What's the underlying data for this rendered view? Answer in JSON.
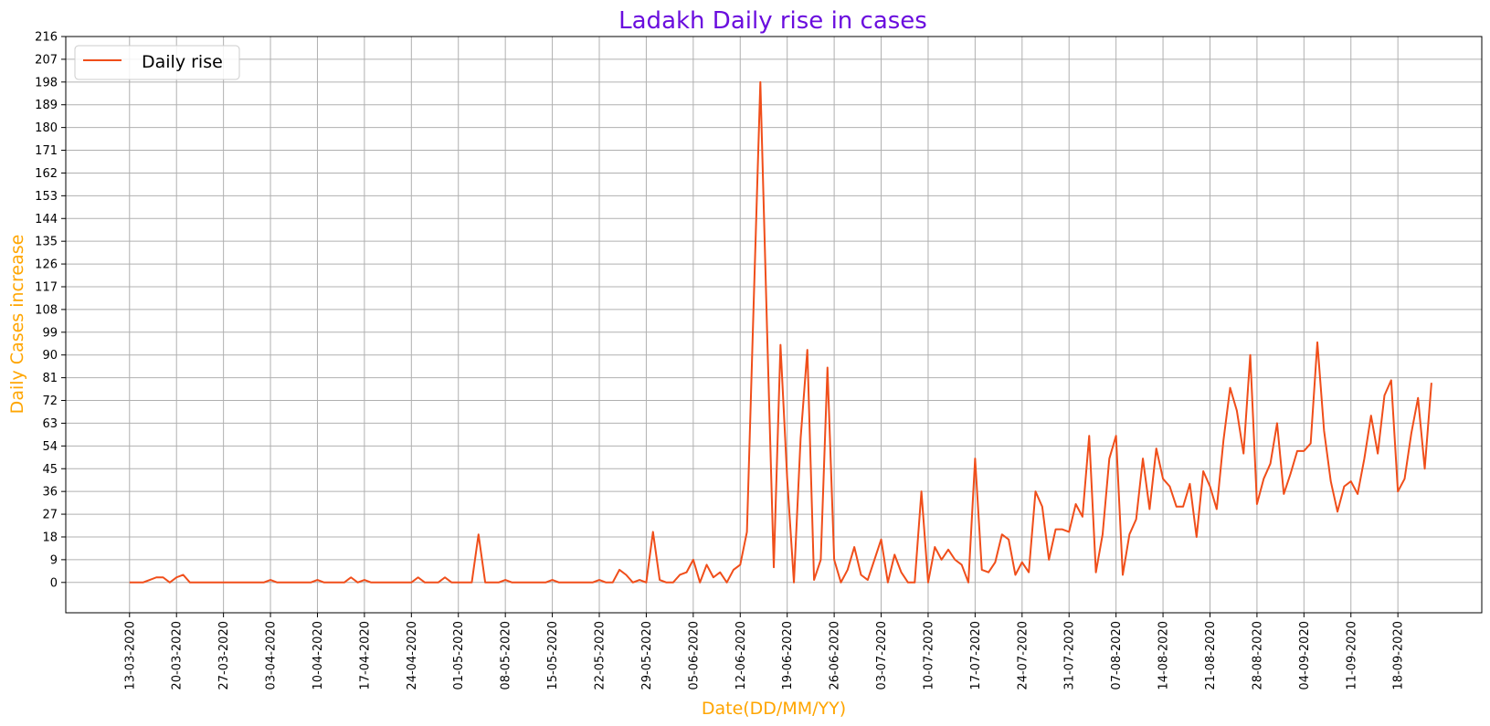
{
  "chart_data": {
    "type": "line",
    "title": "Ladakh Daily rise in cases",
    "xlabel": "Date(DD/MM/YY)",
    "ylabel": "Daily Cases increase",
    "legend": {
      "position": "top-left",
      "entries": [
        "Daily rise"
      ]
    },
    "grid": true,
    "colors": {
      "title": "#6a0dde",
      "axis_label": "#ffa500",
      "line": "#f04e1a",
      "grid": "#b0b0b0"
    },
    "ylim": [
      -12,
      216
    ],
    "yticks": [
      0,
      9,
      18,
      27,
      36,
      45,
      54,
      63,
      72,
      81,
      90,
      99,
      108,
      117,
      126,
      135,
      144,
      153,
      162,
      171,
      180,
      189,
      198,
      207,
      216
    ],
    "xtick_labels": [
      "13-03-2020",
      "20-03-2020",
      "27-03-2020",
      "03-04-2020",
      "10-04-2020",
      "17-04-2020",
      "24-04-2020",
      "01-05-2020",
      "08-05-2020",
      "15-05-2020",
      "22-05-2020",
      "29-05-2020",
      "05-06-2020",
      "12-06-2020",
      "19-06-2020",
      "26-06-2020",
      "03-07-2020",
      "10-07-2020",
      "17-07-2020",
      "24-07-2020",
      "31-07-2020",
      "07-08-2020",
      "14-08-2020",
      "21-08-2020",
      "28-08-2020",
      "04-09-2020",
      "11-09-2020",
      "18-09-2020"
    ],
    "x_start_date": "13-03-2020",
    "x_day_range": [
      -9.5,
      201.5
    ],
    "series": [
      {
        "name": "Daily rise",
        "values": [
          0,
          0,
          0,
          1,
          2,
          2,
          0,
          2,
          3,
          0,
          0,
          0,
          0,
          0,
          0,
          0,
          0,
          0,
          0,
          0,
          0,
          1,
          0,
          0,
          0,
          0,
          0,
          0,
          1,
          0,
          0,
          0,
          0,
          2,
          0,
          1,
          0,
          0,
          0,
          0,
          0,
          0,
          0,
          2,
          0,
          0,
          0,
          2,
          0,
          0,
          0,
          0,
          19,
          0,
          0,
          0,
          1,
          0,
          0,
          0,
          0,
          0,
          0,
          1,
          0,
          0,
          0,
          0,
          0,
          0,
          1,
          0,
          0,
          5,
          3,
          0,
          1,
          0,
          20,
          1,
          0,
          0,
          3,
          4,
          9,
          0,
          7,
          2,
          4,
          0,
          5,
          7,
          20,
          110,
          198,
          100,
          6,
          94,
          41,
          0,
          57,
          92,
          1,
          9,
          85,
          9,
          0,
          5,
          14,
          3,
          1,
          9,
          17,
          0,
          11,
          4,
          0,
          0,
          36,
          0,
          14,
          9,
          13,
          9,
          7,
          0,
          49,
          5,
          4,
          8,
          19,
          17,
          3,
          8,
          4,
          36,
          30,
          9,
          21,
          21,
          20,
          31,
          26,
          58,
          4,
          19,
          49,
          58,
          3,
          19,
          25,
          49,
          29,
          53,
          41,
          38,
          30,
          30,
          39,
          18,
          44,
          38,
          29,
          56,
          77,
          68,
          51,
          90,
          31,
          41,
          47,
          63,
          35,
          43,
          52,
          52,
          55,
          95,
          60,
          40,
          28,
          38,
          40,
          35,
          49,
          66,
          51,
          74,
          80,
          36,
          41,
          59,
          73,
          45,
          79
        ]
      }
    ]
  }
}
